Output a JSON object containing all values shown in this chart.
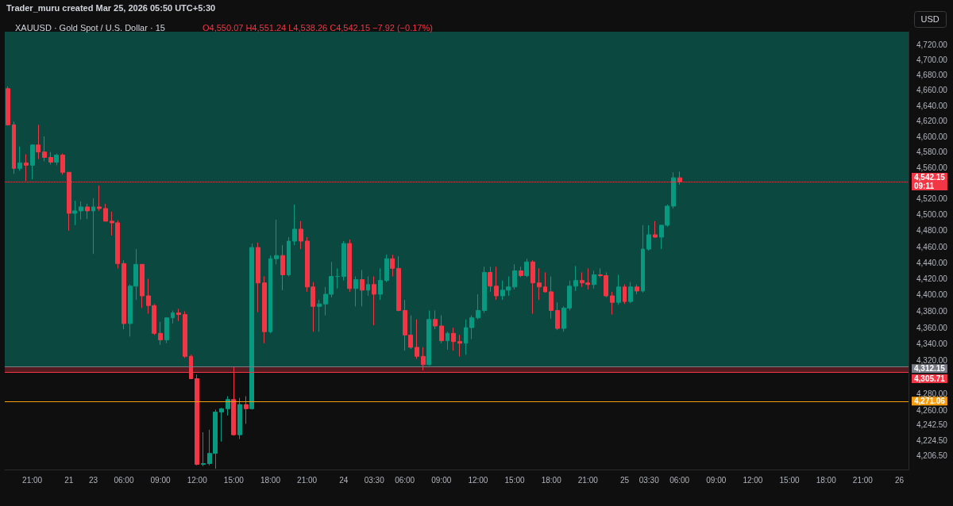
{
  "chart_data": {
    "type": "candlestick",
    "title": "XAUUSD · Gold Spot / U.S. Dollar · 15",
    "subtitle": "O4,550.07 H4,551.24 L4,538.26 C4,542.15 −7.92 (−0.17%)",
    "ylabel": "USD",
    "annotations": [
      "Trader_muru created Mar 25, 2026 05:50 UTC+5:30"
    ],
    "colors": [
      "#f23645",
      "#f23645",
      "#089981",
      "#f23645",
      "#089981",
      "#f23645",
      "#f23645",
      "#f23645",
      "#089981",
      "#f23645",
      "#f23645",
      "#089981",
      "#089981",
      "#f23645",
      "#089981",
      "#f23645",
      "#f23645",
      "#f23645",
      "#f23645",
      "#f23645",
      "#089981",
      "#089981",
      "#f23645",
      "#f23645",
      "#f23645",
      "#f23645",
      "#089981",
      "#089981",
      "#f23645",
      "#f23645",
      "#f23645",
      "#f23645",
      "#089981",
      "#089981",
      "#089981",
      "#089981",
      "#089981",
      "#f23645",
      "#089981",
      "#f23645",
      "#089981",
      "#f23645",
      "#f23645",
      "#089981",
      "#089981",
      "#f23645",
      "#089981",
      "#089981",
      "#f23645",
      "#f23645",
      "#f23645",
      "#089981",
      "#089981",
      "#089981",
      "#089981",
      "#089981",
      "#f23645",
      "#089981",
      "#f23645",
      "#089981",
      "#f23645",
      "#089981",
      "#089981",
      "#f23645",
      "#f23645",
      "#f23645",
      "#f23645",
      "#f23645",
      "#f23645",
      "#089981",
      "#f23645",
      "#f23645",
      "#089981",
      "#f23645",
      "#f23645",
      "#089981",
      "#089981",
      "#089981",
      "#089981",
      "#f23645",
      "#f23645",
      "#089981",
      "#089981",
      "#089981",
      "#f23645",
      "#089981",
      "#f23645",
      "#f23645",
      "#f23645",
      "#f23645",
      "#f23645",
      "#089981",
      "#089981",
      "#089981",
      "#f23645",
      "#f23645",
      "#089981",
      "#f23645",
      "#f23645",
      "#f23645",
      "#089981",
      "#f23645",
      "#089981",
      "#f23645",
      "#089981",
      "#089981",
      "#f23645",
      "#089981",
      "#089981",
      "#089981",
      "#f23645",
      null,
      null,
      null,
      null,
      null,
      null,
      null,
      null,
      null,
      null,
      null,
      null,
      null,
      null,
      null,
      null,
      null,
      null,
      null,
      null,
      null,
      null,
      null,
      null,
      null,
      null,
      null,
      null,
      null,
      null,
      null,
      null,
      null,
      null,
      null,
      null,
      null
    ],
    "categories": [
      null,
      null,
      null,
      null,
      "21:00",
      null,
      null,
      null,
      null,
      null,
      "21",
      null,
      null,
      null,
      "23",
      null,
      null,
      null,
      null,
      "06:00",
      null,
      null,
      null,
      null,
      null,
      "09:00",
      null,
      null,
      null,
      null,
      null,
      "12:00",
      null,
      null,
      null,
      null,
      null,
      "15:00",
      null,
      null,
      null,
      null,
      null,
      "18:00",
      null,
      null,
      null,
      null,
      null,
      "21:00",
      null,
      null,
      null,
      null,
      null,
      "24",
      null,
      null,
      null,
      null,
      "03:30",
      null,
      null,
      null,
      null,
      "06:00",
      null,
      null,
      null,
      null,
      null,
      "09:00",
      null,
      null,
      null,
      null,
      null,
      "12:00",
      null,
      null,
      null,
      null,
      null,
      "15:00",
      null,
      null,
      null,
      null,
      null,
      "18:00",
      null,
      null,
      null,
      null,
      null,
      "21:00",
      null,
      null,
      null,
      null,
      null,
      "25",
      null,
      null,
      null,
      "03:30",
      null,
      null,
      null,
      null,
      "06:00",
      null,
      null,
      null,
      null,
      null,
      "09:00",
      null,
      null,
      null,
      null,
      null,
      "12:00",
      null,
      null,
      null,
      null,
      null,
      "15:00",
      null,
      null,
      null,
      null,
      null,
      "18:00",
      null,
      null,
      null,
      null,
      null,
      "21:00",
      null,
      null,
      null,
      null,
      null,
      "26",
      null
    ],
    "ohlc": [
      [
        4662,
        4665,
        4614,
        4615
      ],
      [
        4615,
        4619,
        4552,
        4559
      ],
      [
        4559,
        4587,
        4556,
        4566
      ],
      [
        4566,
        4577,
        4543,
        4563
      ],
      [
        4563,
        4590,
        4545,
        4589
      ],
      [
        4589,
        4615,
        4571,
        4580
      ],
      [
        4580,
        4600,
        4568,
        4573
      ],
      [
        4573,
        4580,
        4564,
        4567
      ],
      [
        4567,
        4578,
        4563,
        4576
      ],
      [
        4576,
        4578,
        4551,
        4554
      ],
      [
        4554,
        4554,
        4480,
        4502
      ],
      [
        4502,
        4518,
        4487,
        4505
      ],
      [
        4505,
        4517,
        4494,
        4510
      ],
      [
        4510,
        4514,
        4495,
        4505
      ],
      [
        4505,
        4521,
        4451,
        4510
      ],
      [
        4510,
        4537,
        4505,
        4508
      ],
      [
        4508,
        4514,
        4492,
        4492
      ],
      [
        4492,
        4504,
        4474,
        4490
      ],
      [
        4490,
        4493,
        4433,
        4439
      ],
      [
        4439,
        4443,
        4358,
        4365
      ],
      [
        4365,
        4413,
        4349,
        4411
      ],
      [
        4411,
        4457,
        4394,
        4438
      ],
      [
        4438,
        4438,
        4384,
        4399
      ],
      [
        4399,
        4420,
        4377,
        4387
      ],
      [
        4387,
        4389,
        4351,
        4353
      ],
      [
        4353,
        4367,
        4339,
        4345
      ],
      [
        4345,
        4372,
        4341,
        4372
      ],
      [
        4372,
        4381,
        4365,
        4378
      ],
      [
        4378,
        4383,
        4368,
        4376
      ],
      [
        4376,
        4380,
        4323,
        4325
      ],
      [
        4325,
        4327,
        4298,
        4298
      ],
      [
        4298,
        4303,
        4195,
        4196
      ],
      [
        4196,
        4234,
        4194,
        4197
      ],
      [
        4197,
        4237,
        4195,
        4209
      ],
      [
        4209,
        4261,
        4191,
        4258
      ],
      [
        4258,
        4263,
        4223,
        4262
      ],
      [
        4262,
        4277,
        4254,
        4273
      ],
      [
        4273,
        4312,
        4230,
        4231
      ],
      [
        4231,
        4275,
        4226,
        4267
      ],
      [
        4267,
        4277,
        4244,
        4262
      ],
      [
        4262,
        4464,
        4261,
        4459
      ],
      [
        4459,
        4465,
        4379,
        4415
      ],
      [
        4415,
        4423,
        4341,
        4355
      ],
      [
        4355,
        4449,
        4353,
        4445
      ],
      [
        4445,
        4494,
        4438,
        4449
      ],
      [
        4449,
        4462,
        4406,
        4425
      ],
      [
        4425,
        4472,
        4423,
        4467
      ],
      [
        4467,
        4513,
        4462,
        4482
      ],
      [
        4482,
        4492,
        4457,
        4467
      ],
      [
        4467,
        4472,
        4404,
        4410
      ],
      [
        4410,
        4416,
        4355,
        4386
      ],
      [
        4386,
        4394,
        4355,
        4389
      ],
      [
        4389,
        4410,
        4375,
        4401
      ],
      [
        4401,
        4441,
        4397,
        4423
      ],
      [
        4423,
        4433,
        4408,
        4423
      ],
      [
        4423,
        4467,
        4418,
        4464
      ],
      [
        4464,
        4469,
        4404,
        4408
      ],
      [
        4408,
        4423,
        4386,
        4419
      ],
      [
        4419,
        4431,
        4386,
        4406
      ],
      [
        4406,
        4423,
        4399,
        4413
      ],
      [
        4413,
        4423,
        4363,
        4401
      ],
      [
        4401,
        4433,
        4394,
        4418
      ],
      [
        4418,
        4450,
        4416,
        4445
      ],
      [
        4445,
        4450,
        4423,
        4433
      ],
      [
        4433,
        4448,
        4380,
        4381
      ],
      [
        4381,
        4394,
        4332,
        4351
      ],
      [
        4351,
        4375,
        4334,
        4336
      ],
      [
        4336,
        4370,
        4322,
        4325
      ],
      [
        4325,
        4336,
        4308,
        4315
      ],
      [
        4315,
        4381,
        4314,
        4370
      ],
      [
        4370,
        4381,
        4358,
        4362
      ],
      [
        4362,
        4375,
        4341,
        4344
      ],
      [
        4344,
        4355,
        4333,
        4353
      ],
      [
        4353,
        4360,
        4332,
        4343
      ],
      [
        4343,
        4351,
        4325,
        4341
      ],
      [
        4341,
        4370,
        4327,
        4360
      ],
      [
        4360,
        4375,
        4346,
        4372
      ],
      [
        4372,
        4401,
        4370,
        4381
      ],
      [
        4381,
        4435,
        4378,
        4428
      ],
      [
        4428,
        4435,
        4404,
        4411
      ],
      [
        4411,
        4435,
        4394,
        4399
      ],
      [
        4399,
        4418,
        4394,
        4406
      ],
      [
        4406,
        4423,
        4399,
        4410
      ],
      [
        4410,
        4438,
        4407,
        4430
      ],
      [
        4430,
        4435,
        4422,
        4424
      ],
      [
        4424,
        4445,
        4422,
        4441
      ],
      [
        4441,
        4443,
        4377,
        4415
      ],
      [
        4415,
        4433,
        4394,
        4410
      ],
      [
        4410,
        4428,
        4403,
        4404
      ],
      [
        4404,
        4423,
        4371,
        4381
      ],
      [
        4381,
        4391,
        4357,
        4359
      ],
      [
        4359,
        4386,
        4355,
        4384
      ],
      [
        4384,
        4418,
        4381,
        4411
      ],
      [
        4411,
        4436,
        4405,
        4418
      ],
      [
        4418,
        4428,
        4410,
        4415
      ],
      [
        4415,
        4433,
        4407,
        4413
      ],
      [
        4413,
        4430,
        4408,
        4425
      ],
      [
        4425,
        4433,
        4422,
        4424
      ],
      [
        4424,
        4428,
        4397,
        4399
      ],
      [
        4399,
        4404,
        4376,
        4391
      ],
      [
        4391,
        4425,
        4388,
        4410
      ],
      [
        4410,
        4413,
        4389,
        4392
      ],
      [
        4392,
        4416,
        4390,
        4410
      ],
      [
        4410,
        4413,
        4401,
        4405
      ],
      [
        4405,
        4487,
        4403,
        4457
      ],
      [
        4457,
        4487,
        4455,
        4475
      ],
      [
        4475,
        4492,
        4471,
        4472
      ],
      [
        4472,
        4487,
        4457,
        4487
      ],
      [
        4487,
        4513,
        4485,
        4511
      ],
      [
        4511,
        4554,
        4508,
        4547
      ],
      [
        4547,
        4555,
        4538.26,
        4542.15
      ],
      null,
      null,
      null,
      null,
      null,
      null,
      null,
      null,
      null,
      null,
      null,
      null,
      null,
      null,
      null,
      null,
      null,
      null,
      null,
      null,
      null,
      null,
      null,
      null,
      null,
      null,
      null,
      null,
      null,
      null,
      null,
      null,
      null,
      null,
      null,
      null,
      null
    ],
    "log": true,
    "ylim": [
      4190,
      4737
    ],
    "yticks": [
      {
        "value": 4206.5,
        "label": "4,206.50"
      },
      {
        "value": 4224.5,
        "label": "4,224.50"
      },
      {
        "value": 4242.5,
        "label": "4,242.50"
      },
      {
        "value": 4260,
        "label": "4,260.00"
      },
      {
        "value": 4280,
        "label": "4,280.00"
      },
      {
        "value": 4320,
        "label": "4,320.00"
      },
      {
        "value": 4340,
        "label": "4,340.00"
      },
      {
        "value": 4360,
        "label": "4,360.00"
      },
      {
        "value": 4380,
        "label": "4,380.00"
      },
      {
        "value": 4400,
        "label": "4,400.00"
      },
      {
        "value": 4420,
        "label": "4,420.00"
      },
      {
        "value": 4440,
        "label": "4,440.00"
      },
      {
        "value": 4460,
        "label": "4,460.00"
      },
      {
        "value": 4480,
        "label": "4,480.00"
      },
      {
        "value": 4500,
        "label": "4,500.00"
      },
      {
        "value": 4520,
        "label": "4,520.00"
      },
      {
        "value": 4560,
        "label": "4,560.00"
      },
      {
        "value": 4580,
        "label": "4,580.00"
      },
      {
        "value": 4600,
        "label": "4,600.00"
      },
      {
        "value": 4620,
        "label": "4,620.00"
      },
      {
        "value": 4640,
        "label": "4,640.00"
      },
      {
        "value": 4660,
        "label": "4,660.00"
      },
      {
        "value": 4680,
        "label": "4,680.00"
      },
      {
        "value": 4700,
        "label": "4,700.00"
      },
      {
        "value": 4720,
        "label": "4,720.00"
      }
    ],
    "ref_lines": [
      {
        "axis": "y",
        "value": 4542.15,
        "label": "4,542.15\n09:11",
        "color": "#f23645",
        "line_style": "dotted"
      },
      {
        "axis": "y",
        "value": 4312.15,
        "label": "4,312.15",
        "color": "#787b86",
        "line_style": "solid"
      },
      {
        "axis": "y",
        "value": 4305.71,
        "label": "4,305.71",
        "color": "#f23645",
        "line_style": "solid"
      },
      {
        "axis": "y",
        "value": 4271.06,
        "label": "4,271.06",
        "color": "#f59d0e",
        "line_style": "solid"
      }
    ],
    "bands": [
      {
        "axis": "y",
        "from": 4312.15,
        "to": 4737,
        "color": "#0b5e52"
      },
      {
        "axis": "y",
        "from": 4305.71,
        "to": 4312.15,
        "color": "#6b1f27"
      }
    ],
    "grid": false
  }
}
